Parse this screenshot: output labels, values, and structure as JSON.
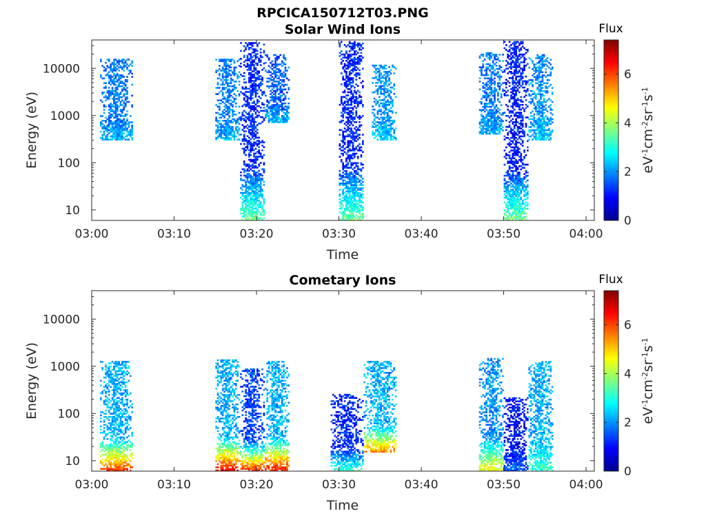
{
  "figure_title": "RPCICA150712T03.PNG",
  "chart_data": [
    {
      "type": "heatmap",
      "title": "Solar Wind Ions",
      "xlabel": "Time",
      "ylabel": "Energy (eV)",
      "xlim": [
        "03:00",
        "04:01"
      ],
      "ylim": [
        6,
        40000
      ],
      "y_scale": "log",
      "x_ticks": [
        "03:00",
        "03:10",
        "03:20",
        "03:30",
        "03:40",
        "03:50",
        "04:00"
      ],
      "y_ticks": [
        "10",
        "100",
        "1000",
        "10000"
      ],
      "colorbar": {
        "title": "Flux",
        "label": "eV-1cm-2sr-1s-1",
        "range": [
          0,
          7.4
        ],
        "ticks": [
          "0",
          "2",
          "4",
          "6"
        ],
        "colormap": "jet"
      },
      "bursts": [
        {
          "start": "03:01",
          "end": "03:04",
          "emin": 300,
          "emax": 16000,
          "flux": 1.8,
          "lowflux": 2.2
        },
        {
          "start": "03:15",
          "end": "03:17",
          "emin": 300,
          "emax": 16000,
          "flux": 1.8,
          "lowflux": 2.2
        },
        {
          "start": "03:18",
          "end": "03:20",
          "emin": 6,
          "emax": 36000,
          "flux": 1.2,
          "lowflux": 3.6
        },
        {
          "start": "03:21",
          "end": "03:23",
          "emin": 700,
          "emax": 20000,
          "flux": 1.6,
          "lowflux": 2.2
        },
        {
          "start": "03:30",
          "end": "03:32",
          "emin": 6,
          "emax": 38000,
          "flux": 1.2,
          "lowflux": 3.6
        },
        {
          "start": "03:34",
          "end": "03:36",
          "emin": 300,
          "emax": 12000,
          "flux": 2.0,
          "lowflux": 2.4
        },
        {
          "start": "03:47",
          "end": "03:49",
          "emin": 400,
          "emax": 22000,
          "flux": 1.8,
          "lowflux": 2.2
        },
        {
          "start": "03:50",
          "end": "03:52",
          "emin": 6,
          "emax": 38000,
          "flux": 1.1,
          "lowflux": 3.6
        },
        {
          "start": "03:53",
          "end": "03:55",
          "emin": 300,
          "emax": 20000,
          "flux": 2.0,
          "lowflux": 2.4
        }
      ]
    },
    {
      "type": "heatmap",
      "title": "Cometary Ions",
      "xlabel": "Time",
      "ylabel": "Energy (eV)",
      "xlim": [
        "03:00",
        "04:01"
      ],
      "ylim": [
        6,
        40000
      ],
      "y_scale": "log",
      "x_ticks": [
        "03:00",
        "03:10",
        "03:20",
        "03:30",
        "03:40",
        "03:50",
        "04:00"
      ],
      "y_ticks": [
        "10",
        "100",
        "1000",
        "10000"
      ],
      "colorbar": {
        "title": "Flux",
        "label": "eV-1cm-2sr-1s-1",
        "range": [
          0,
          7.4
        ],
        "ticks": [
          "0",
          "2",
          "4",
          "6"
        ],
        "colormap": "jet"
      },
      "bursts": [
        {
          "start": "03:01",
          "end": "03:04",
          "emin": 6,
          "emax": 1300,
          "flux": 2.2,
          "lowflux": 6.2
        },
        {
          "start": "03:15",
          "end": "03:17",
          "emin": 6,
          "emax": 1400,
          "flux": 2.2,
          "lowflux": 6.6
        },
        {
          "start": "03:18",
          "end": "03:20",
          "emin": 6,
          "emax": 900,
          "flux": 1.4,
          "lowflux": 6.2
        },
        {
          "start": "03:21",
          "end": "03:23",
          "emin": 6,
          "emax": 1300,
          "flux": 2.2,
          "lowflux": 6.4
        },
        {
          "start": "03:29",
          "end": "03:32",
          "emin": 6,
          "emax": 260,
          "flux": 1.2,
          "lowflux": 3.2
        },
        {
          "start": "03:33",
          "end": "03:36",
          "emin": 15,
          "emax": 1300,
          "flux": 2.2,
          "lowflux": 5.4
        },
        {
          "start": "03:47",
          "end": "03:49",
          "emin": 6,
          "emax": 1500,
          "flux": 2.0,
          "lowflux": 4.6
        },
        {
          "start": "03:50",
          "end": "03:52",
          "emin": 6,
          "emax": 220,
          "flux": 1.0,
          "lowflux": 1.6
        },
        {
          "start": "03:53",
          "end": "03:55",
          "emin": 6,
          "emax": 1300,
          "flux": 2.2,
          "lowflux": 3.2
        }
      ]
    }
  ]
}
